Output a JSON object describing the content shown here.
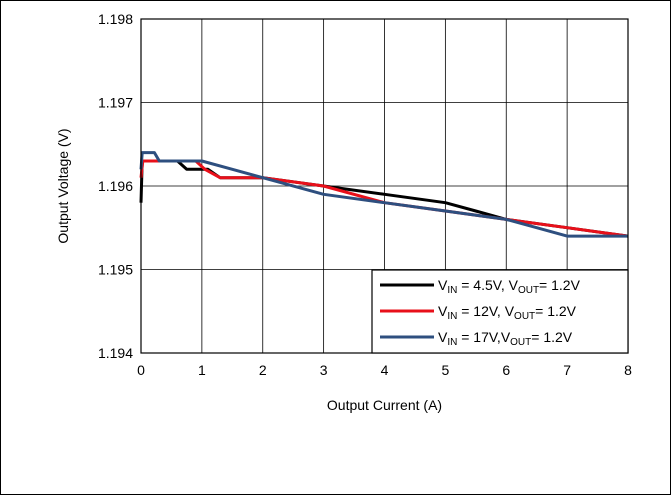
{
  "chart_data": {
    "type": "line",
    "xlabel": "Output Current (A)",
    "ylabel": "Output Voltage (V)",
    "xlim": [
      0,
      8
    ],
    "ylim": [
      1.194,
      1.198
    ],
    "x_ticks": [
      "0",
      "1",
      "2",
      "3",
      "4",
      "5",
      "6",
      "7",
      "8"
    ],
    "y_ticks": [
      "1.194",
      "1.195",
      "1.196",
      "1.197",
      "1.198"
    ],
    "grid": true,
    "legend_position": "bottom-right",
    "series": [
      {
        "color": "#000000",
        "legend": {
          "v": "V",
          "sub1": "IN",
          "mid": " = 4.5V, V",
          "sub2": "OUT",
          "end": "= 1.2V"
        },
        "x": [
          0,
          0.02,
          0.05,
          0.6,
          0.75,
          1.1,
          1.3,
          1.5,
          2,
          3,
          4,
          5,
          5.5,
          6,
          7,
          8
        ],
        "y": [
          1.1958,
          1.1963,
          1.1963,
          1.1963,
          1.1962,
          1.1962,
          1.1961,
          1.1961,
          1.1961,
          1.196,
          1.1959,
          1.1958,
          1.1957,
          1.1956,
          1.1955,
          1.1954
        ]
      },
      {
        "color": "#e8101a",
        "legend": {
          "v": "V",
          "sub1": "IN",
          "mid": " = 12V, V",
          "sub2": "OUT",
          "end": "= 1.2V"
        },
        "x": [
          0,
          0.03,
          0.1,
          0.9,
          1.05,
          1.3,
          1.6,
          2,
          3,
          4,
          5,
          6,
          7,
          8
        ],
        "y": [
          1.1961,
          1.1963,
          1.1963,
          1.1963,
          1.1962,
          1.1961,
          1.1961,
          1.1961,
          1.196,
          1.1958,
          1.1957,
          1.1956,
          1.1955,
          1.1954
        ]
      },
      {
        "color": "#2e4f7f",
        "legend": {
          "v": "V",
          "sub1": "IN",
          "mid": " = 17V,V",
          "sub2": "OUT",
          "end": "= 1.2V"
        },
        "x": [
          0,
          0.02,
          0.22,
          0.3,
          1,
          1.5,
          2,
          3,
          4,
          5,
          6,
          6.5,
          7,
          8
        ],
        "y": [
          1.1962,
          1.1964,
          1.1964,
          1.1963,
          1.1963,
          1.1962,
          1.1961,
          1.1959,
          1.1958,
          1.1957,
          1.1956,
          1.1955,
          1.1954,
          1.1954
        ]
      }
    ]
  }
}
